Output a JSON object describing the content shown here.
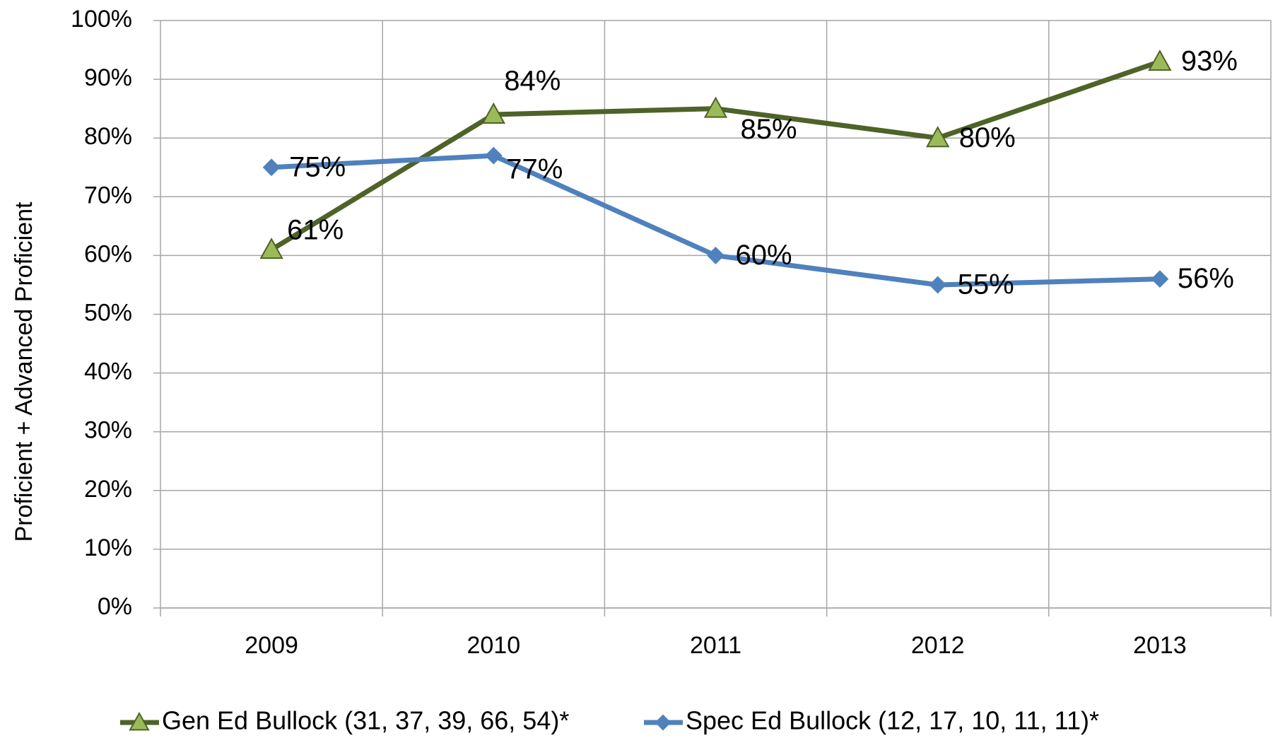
{
  "chart_data": {
    "type": "line",
    "y_label": "Proficient + Advanced Proficient",
    "categories": [
      "2009",
      "2010",
      "2011",
      "2012",
      "2013"
    ],
    "series": [
      {
        "name": "Gen Ed Bullock (31, 37, 39, 66, 54)*",
        "color": "#4f6228",
        "marker_color": "#9bbb59",
        "marker": "triangle",
        "values": [
          61,
          84,
          85,
          80,
          93
        ],
        "value_labels": [
          "61%",
          "84%",
          "85%",
          "80%",
          "93%"
        ]
      },
      {
        "name": "Spec Ed Bullock (12, 17, 10, 11, 11)*",
        "color": "#4f81bd",
        "marker_color": "#4f81bd",
        "marker": "diamond",
        "values": [
          75,
          77,
          60,
          55,
          56
        ],
        "value_labels": [
          "75%",
          "77%",
          "60%",
          "55%",
          "56%"
        ]
      }
    ],
    "ylim": [
      0,
      100
    ],
    "yticks": [
      {
        "value": 0,
        "label": "0%"
      },
      {
        "value": 10,
        "label": "10%"
      },
      {
        "value": 20,
        "label": "20%"
      },
      {
        "value": 30,
        "label": "30%"
      },
      {
        "value": 40,
        "label": "40%"
      },
      {
        "value": 50,
        "label": "50%"
      },
      {
        "value": 60,
        "label": "60%"
      },
      {
        "value": 70,
        "label": "70%"
      },
      {
        "value": 80,
        "label": "80%"
      },
      {
        "value": 90,
        "label": "90%"
      },
      {
        "value": 100,
        "label": "100%"
      }
    ],
    "grid": true,
    "legend": "bottom"
  }
}
